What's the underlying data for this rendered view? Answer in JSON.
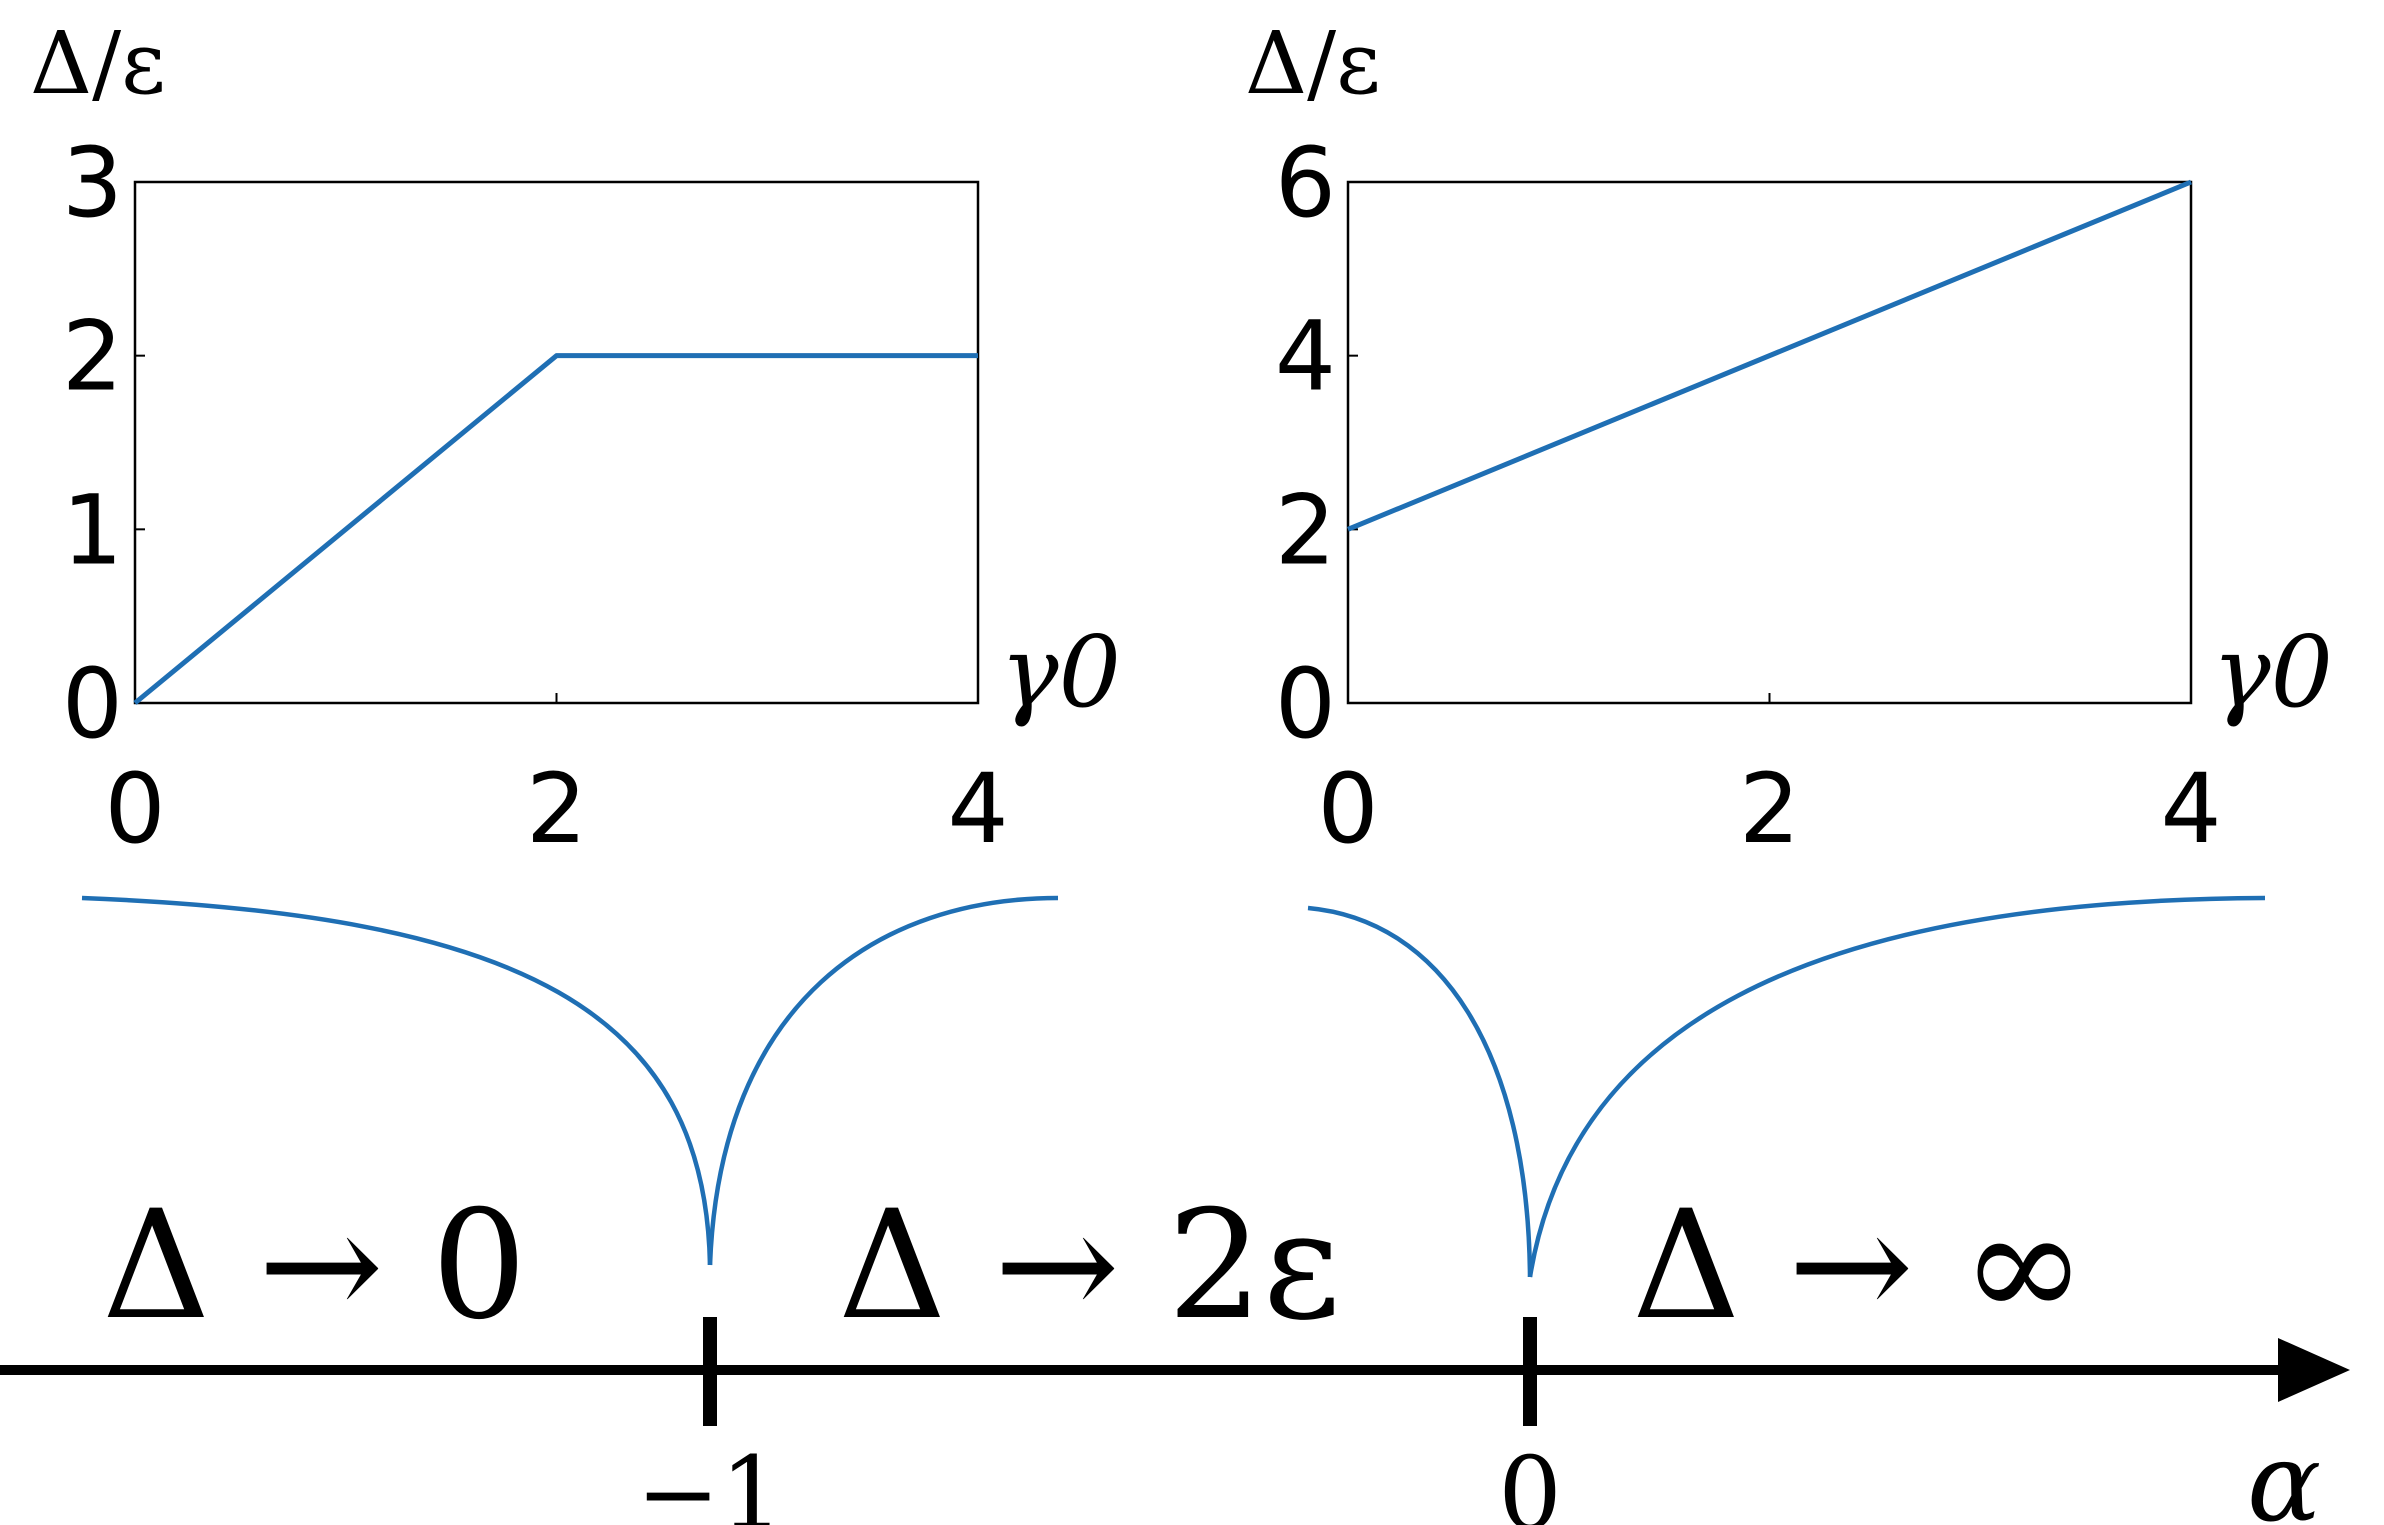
{
  "chart_data": [
    {
      "type": "line",
      "ylabel": "Δ/ε",
      "xlabel": "γ0",
      "xlim": [
        0,
        4
      ],
      "ylim": [
        0,
        3
      ],
      "xticks": [
        "0",
        "2",
        "4"
      ],
      "yticks": [
        "0",
        "1",
        "2",
        "3"
      ],
      "grid": false,
      "series": [
        {
          "x": [
            0,
            2,
            4
          ],
          "y": [
            0,
            2,
            2
          ]
        }
      ]
    },
    {
      "type": "line",
      "ylabel": "Δ/ε",
      "xlabel": "γ0",
      "xlim": [
        0,
        4
      ],
      "ylim": [
        0,
        6
      ],
      "xticks": [
        "0",
        "2",
        "4"
      ],
      "yticks": [
        "0",
        "2",
        "4",
        "6"
      ],
      "grid": false,
      "series": [
        {
          "x": [
            0,
            4
          ],
          "y": [
            2,
            6
          ]
        }
      ]
    }
  ],
  "axis": {
    "label": "α",
    "ticks": [
      "−1",
      "0"
    ]
  },
  "regions": [
    "Δ → 0",
    "Δ → 2ε",
    "Δ → ∞"
  ],
  "colors": {
    "line": "#1f6fb4",
    "axis": "#000000"
  }
}
